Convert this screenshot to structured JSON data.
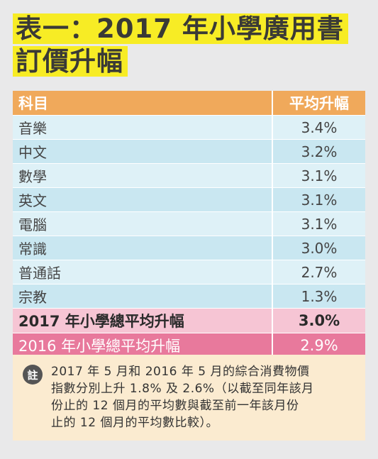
{
  "title": {
    "line1": "表一：2017 年小學廣用書",
    "line2": "訂價升幅"
  },
  "table": {
    "headers": [
      "科目",
      "平均升幅"
    ],
    "rows": [
      {
        "subject": "音樂",
        "rise": "3.4%"
      },
      {
        "subject": "中文",
        "rise": "3.2%"
      },
      {
        "subject": "數學",
        "rise": "3.1%"
      },
      {
        "subject": "英文",
        "rise": "3.1%"
      },
      {
        "subject": "電腦",
        "rise": "3.1%"
      },
      {
        "subject": "常識",
        "rise": "3.0%"
      },
      {
        "subject": "普通話",
        "rise": "2.7%"
      },
      {
        "subject": "宗教",
        "rise": "1.3%"
      }
    ],
    "total_2017": {
      "label": "2017 年小學總平均升幅",
      "rise": "3.0%"
    },
    "total_2016": {
      "label": "2016 年小學總平均升幅",
      "rise": "2.9%"
    }
  },
  "note": {
    "icon_label": "註",
    "lines": [
      "2017 年 5 月和 2016 年 5 月的綜合消費物價",
      "指數分別上升 1.8% 及 2.6%（以截至同年該月",
      "份止的 12 個月的平均數與截至前一年該月份",
      "止的 12 個月的平均數比較）。"
    ]
  },
  "colors": {
    "highlight": "#f7ec25",
    "header_bg": "#f0a95b",
    "row_light": "#def1f7",
    "row_dark": "#c9e7f1",
    "total_2017_bg": "#f6c5d4",
    "total_2016_bg": "#e8799c",
    "note_bg": "#fbebd0"
  }
}
